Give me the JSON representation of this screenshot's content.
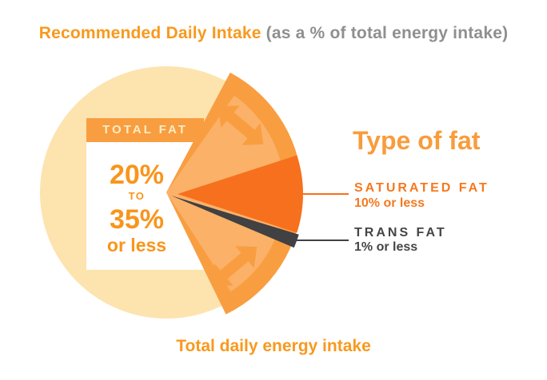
{
  "header": {
    "title": "Recommended Daily Intake",
    "subtitle": "(as a % of total energy intake)"
  },
  "card": {
    "header": "TOTAL FAT",
    "min": "20%",
    "connector": "TO",
    "max": "35%",
    "qualifier": "or less"
  },
  "legend": {
    "title": "Type of fat",
    "items": [
      {
        "label": "SATURATED FAT",
        "value": "10% or less"
      },
      {
        "label": "TRANS FAT",
        "value": "1% or less"
      }
    ]
  },
  "footer": {
    "caption": "Total daily energy intake"
  },
  "colors": {
    "title_orange": "#F8991E",
    "title_gray": "#8F8F8F",
    "cream": "#FDE3AE",
    "fan_orange": "#F89E41",
    "fan_light": "#FBB168",
    "saturated_orange": "#F7701D",
    "trans_gray": "#414042",
    "card_bg": "#FFFFFF",
    "card_text_orange": "#F8951C",
    "card_header_text": "#FDECC3",
    "legend_title_orange": "#F89C3C",
    "saturated_text": "#F5791F",
    "trans_text": "#454547"
  },
  "chart_data": {
    "type": "pie",
    "title": "Recommended Daily Intake",
    "subtitle": "(as a % of total energy intake)",
    "unit": "% of total energy intake",
    "whole_label": "Total daily energy intake",
    "legend_title": "Type of fat",
    "slices": [
      {
        "id": "total_fat",
        "label": "TOTAL FAT",
        "min_pct": 20,
        "max_pct": 35,
        "display": "20% to 35% or less",
        "color": "#F89E41"
      },
      {
        "id": "saturated_fat",
        "label": "SATURATED FAT",
        "max_pct": 10,
        "display": "10% or less",
        "color": "#F7701D"
      },
      {
        "id": "trans_fat",
        "label": "TRANS FAT",
        "max_pct": 1,
        "display": "1% or less",
        "color": "#414042"
      }
    ],
    "layout_hints": {
      "legend_position": "right",
      "grid": false,
      "exploded_slices": [
        "saturated_fat",
        "trans_fat"
      ]
    }
  }
}
